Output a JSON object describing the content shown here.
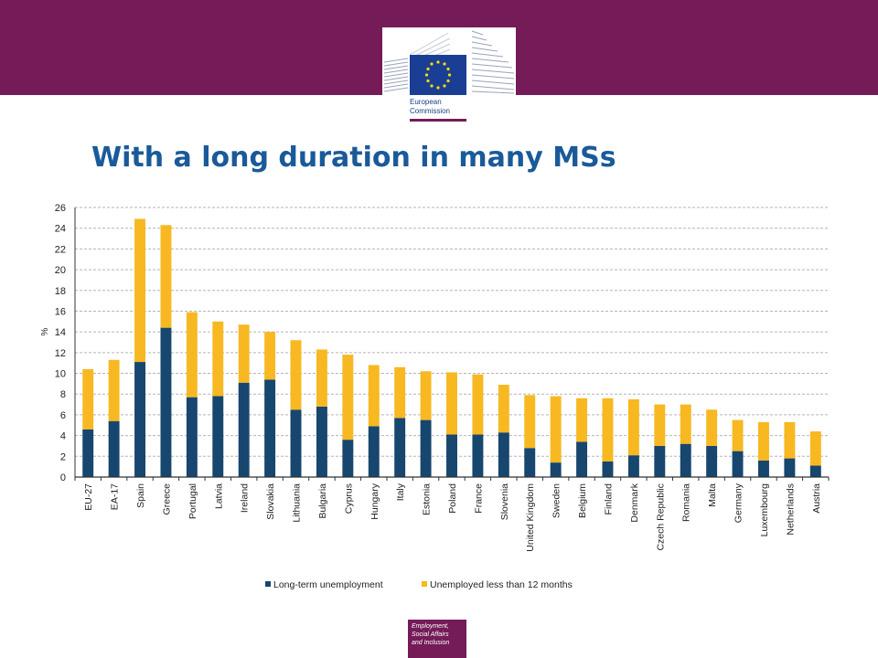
{
  "header": {
    "logo_text_line1": "European",
    "logo_text_line2": "Commission"
  },
  "slide": {
    "title": "With a long duration in many MSs"
  },
  "footer": {
    "line1": "Employment,",
    "line2": "Social Affairs",
    "line3": "and Inclusion"
  },
  "colors": {
    "banner": "#741b58",
    "long_term": "#17466f",
    "short_term": "#f7b821",
    "title": "#1a5a99"
  },
  "chart_data": {
    "type": "bar",
    "stacked": true,
    "title": "",
    "xlabel": "",
    "ylabel": "%",
    "ylim": [
      0,
      26
    ],
    "yticks": [
      0,
      2,
      4,
      6,
      8,
      10,
      12,
      14,
      16,
      18,
      20,
      22,
      24,
      26
    ],
    "grid": true,
    "legend": "bottom",
    "categories": [
      "EU-27",
      "EA-17",
      "Spain",
      "Greece",
      "Portugal",
      "Latvia",
      "Ireland",
      "Slovakia",
      "Lithuania",
      "Bulgaria",
      "Cyprus",
      "Hungary",
      "Italy",
      "Estonia",
      "Poland",
      "France",
      "Slovenia",
      "United Kingdom",
      "Sweden",
      "Belgium",
      "Finland",
      "Denmark",
      "Czech Republic",
      "Romania",
      "Malta",
      "Germany",
      "Luxembourg",
      "Netherlands",
      "Austria"
    ],
    "series": [
      {
        "name": "Long-term unemployment",
        "color": "#17466f",
        "values": [
          4.6,
          5.4,
          11.1,
          14.4,
          7.7,
          7.8,
          9.1,
          9.4,
          6.5,
          6.8,
          3.6,
          4.9,
          5.7,
          5.5,
          4.1,
          4.1,
          4.3,
          2.8,
          1.4,
          3.4,
          1.5,
          2.1,
          3.0,
          3.2,
          3.0,
          2.5,
          1.6,
          1.8,
          1.1
        ]
      },
      {
        "name": "Unemployed less than 12 months",
        "color": "#f7b821",
        "values": [
          5.8,
          5.9,
          13.8,
          9.9,
          8.2,
          7.2,
          5.6,
          4.6,
          6.7,
          5.5,
          8.2,
          5.9,
          4.9,
          4.7,
          6.0,
          5.8,
          4.6,
          5.1,
          6.4,
          4.2,
          6.1,
          5.4,
          4.0,
          3.8,
          3.5,
          3.0,
          3.7,
          3.5,
          3.3
        ]
      }
    ]
  }
}
